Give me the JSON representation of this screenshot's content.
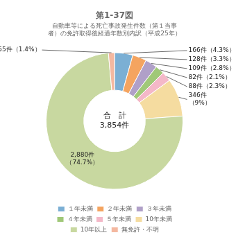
{
  "chart_data": {
    "type": "doughnut",
    "title": "第1-37図",
    "subtitle": "自動車等による死亡事故発生件数（第１当事\n者）の免許取得後経過年数別内訳（平成25年）",
    "categories": [
      "１年未満",
      "２年未満",
      "３年未満",
      "４年未満",
      "５年未満",
      "10年未満",
      "10年以上",
      "無免許・不明"
    ],
    "values": [
      166,
      128,
      109,
      82,
      88,
      346,
      2880,
      55
    ],
    "value_labels": [
      "166件（4.3%）",
      "128件（3.3%）",
      "109件（2.8%）",
      "82件（2.1%）",
      "88件（2.3%）",
      "346件\n（9%）",
      "2,880件\n（74.7%）",
      "55件（1.4%）"
    ],
    "colors": [
      "#7bafd4",
      "#f4a460",
      "#b0a0c8",
      "#a0c878",
      "#f4b8c8",
      "#f5dca0",
      "#c8d8a0",
      "#f4b8a0"
    ],
    "data_labels": true,
    "legend": "bottom",
    "annotations": [
      "合　計\n3,854件"
    ]
  }
}
